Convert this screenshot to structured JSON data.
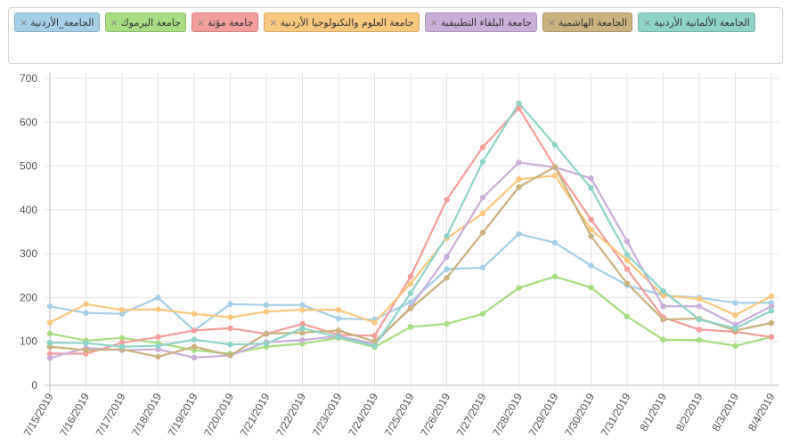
{
  "legend": [
    {
      "label": "الجامعة_الأردنية",
      "color": "#a5cfe6"
    },
    {
      "label": "جامعة اليرموك",
      "color": "#a8dc82"
    },
    {
      "label": "جامعة مؤتة",
      "color": "#f29e9c"
    },
    {
      "label": "جامعة العلوم والتكنولوجيا الأردنية",
      "color": "#f8c87f"
    },
    {
      "label": "جامعة البلقاء التطبيقية",
      "color": "#c9aed8"
    },
    {
      "label": "الجامعة الهاشمية",
      "color": "#c9b27f"
    },
    {
      "label": "الجامعة الألمانية الأردنية",
      "color": "#8fd3c7"
    }
  ],
  "remove_glyph": "×",
  "chart_data": {
    "type": "line",
    "x": [
      "7/15/2019",
      "7/16/2019",
      "7/17/2019",
      "7/18/2019",
      "7/19/2019",
      "7/20/2019",
      "7/21/2019",
      "7/22/2019",
      "7/23/2019",
      "7/24/2019",
      "7/25/2019",
      "7/26/2019",
      "7/27/2019",
      "7/28/2019",
      "7/29/2019",
      "7/30/2019",
      "7/31/2019",
      "8/1/2019",
      "8/2/2019",
      "8/3/2019",
      "8/4/2019"
    ],
    "ylim": [
      0,
      700
    ],
    "yticks": [
      0,
      100,
      200,
      300,
      400,
      500,
      600,
      700
    ],
    "grid": true,
    "legend_position": "top",
    "series": [
      {
        "name": "الجامعة_الأردنية",
        "color": "#a5cfe6",
        "values": [
          180,
          165,
          163,
          200,
          125,
          185,
          183,
          183,
          152,
          150,
          190,
          265,
          268,
          345,
          325,
          273,
          228,
          205,
          200,
          188,
          188
        ]
      },
      {
        "name": "جامعة اليرموك",
        "color": "#a8dc82",
        "values": [
          118,
          102,
          108,
          96,
          80,
          72,
          88,
          95,
          108,
          87,
          133,
          140,
          163,
          222,
          248,
          223,
          157,
          104,
          103,
          90,
          110
        ]
      },
      {
        "name": "جامعة مؤتة",
        "color": "#f29e9c",
        "values": [
          72,
          72,
          97,
          110,
          125,
          130,
          117,
          140,
          115,
          113,
          248,
          423,
          543,
          632,
          498,
          378,
          265,
          155,
          127,
          122,
          110
        ]
      },
      {
        "name": "جامعة العلوم والتكنولوجيا الأردنية",
        "color": "#f8c87f",
        "values": [
          143,
          185,
          172,
          173,
          163,
          155,
          168,
          172,
          172,
          143,
          232,
          335,
          392,
          470,
          478,
          355,
          285,
          205,
          197,
          160,
          203
        ]
      },
      {
        "name": "جامعة البلقاء التطبيقية",
        "color": "#c9aed8",
        "values": [
          62,
          85,
          80,
          82,
          63,
          68,
          98,
          103,
          112,
          95,
          178,
          293,
          428,
          508,
          497,
          472,
          328,
          180,
          180,
          138,
          180
        ]
      },
      {
        "name": "الجامعة الهاشمية",
        "color": "#c9b27f",
        "values": [
          88,
          80,
          82,
          65,
          88,
          68,
          118,
          120,
          125,
          100,
          175,
          245,
          348,
          452,
          498,
          340,
          232,
          150,
          152,
          125,
          142
        ]
      },
      {
        "name": "الجامعة الألمانية الأردنية",
        "color": "#8fd3c7",
        "values": [
          97,
          96,
          88,
          90,
          104,
          93,
          95,
          130,
          110,
          90,
          210,
          340,
          510,
          643,
          548,
          450,
          298,
          215,
          150,
          130,
          170
        ]
      }
    ]
  }
}
